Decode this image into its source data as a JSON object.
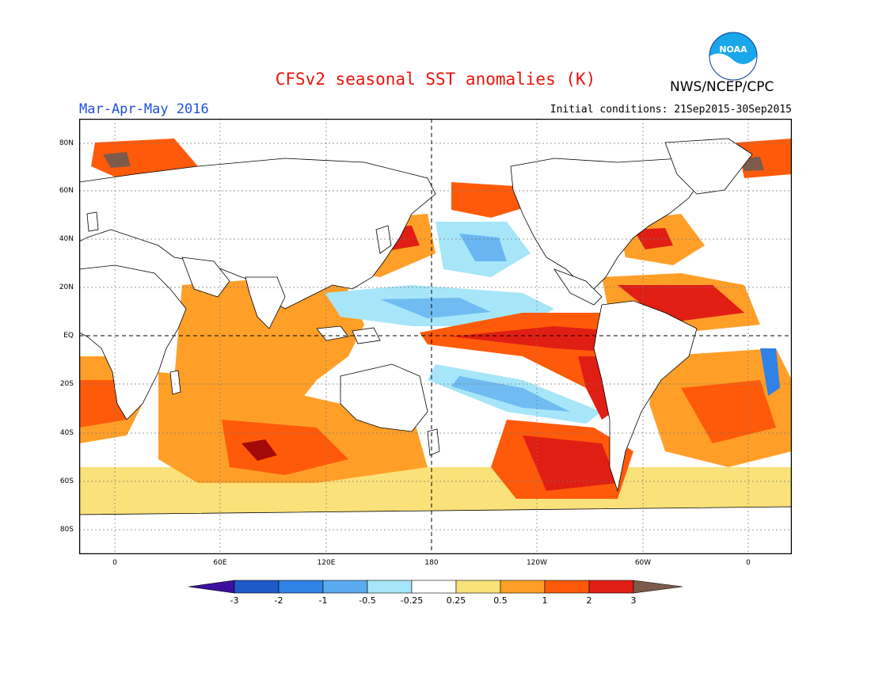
{
  "header": {
    "title": "CFSv2 seasonal SST anomalies (K)",
    "season": "Mar-Apr-May 2016",
    "initial_conditions": "Initial conditions: 21Sep2015-30Sep2015",
    "agency": "NWS/NCEP/CPC",
    "logo_text": "NOAA"
  },
  "colors": {
    "title": "#e8140a",
    "season": "#1e50dc",
    "land": "#ffffff",
    "scale": [
      "#3c0fa0",
      "#1e5ac8",
      "#2f82e6",
      "#5aaaf0",
      "#a6e6f8",
      "#ffffff",
      "#fae17a",
      "#ff9f28",
      "#ff5a0a",
      "#e11e14",
      "#a50a0a",
      "#7d5a4a"
    ]
  },
  "axes": {
    "lat_labels": [
      "80N",
      "60N",
      "40N",
      "20N",
      "EQ",
      "20S",
      "40S",
      "60S",
      "80S"
    ],
    "lon_labels": [
      "0",
      "60E",
      "120E",
      "180",
      "120W",
      "60W",
      "0"
    ]
  },
  "colorbar": {
    "labels": [
      "-3",
      "-2",
      "-1",
      "-0.5",
      "-0.25",
      "0.25",
      "0.5",
      "1",
      "2",
      "3"
    ]
  }
}
